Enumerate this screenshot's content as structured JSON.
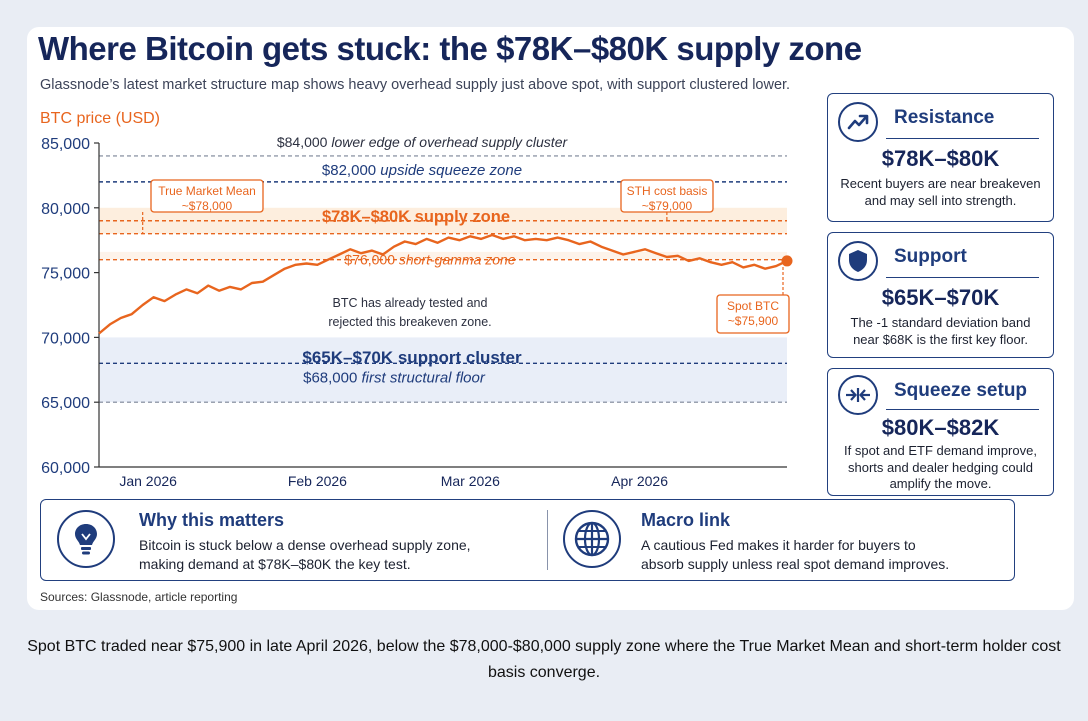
{
  "title": "Where Bitcoin gets stuck: the $78K–$80K supply zone",
  "subtitle": "Glassnode’s latest market structure map shows heavy overhead supply just above spot, with support clustered lower.",
  "colors": {
    "navy": "#1f3c7c",
    "orange": "#e8651e",
    "orange_band": "#fdeede",
    "blue_band": "#e9eef8",
    "dark_text": "#16265a"
  },
  "chart_data": {
    "type": "line",
    "ylabel": "BTC price (USD)",
    "ylim": [
      60000,
      85000
    ],
    "yticks": [
      85000,
      80000,
      75000,
      70000,
      65000,
      60000
    ],
    "ytick_labels": [
      "85,000",
      "80,000",
      "75,000",
      "70,000",
      "65,000",
      "60,000"
    ],
    "xlim": [
      "2025-12-23",
      "2026-04-28"
    ],
    "xticks": [
      {
        "date": "2026-01-01",
        "label": "Jan 2026"
      },
      {
        "date": "2026-02-01",
        "label": "Feb 2026"
      },
      {
        "date": "2026-03-01",
        "label": "Mar 2026"
      },
      {
        "date": "2026-04-01",
        "label": "Apr 2026"
      }
    ],
    "series": [
      {
        "values": [
          [
            "2025-12-23",
            70300
          ],
          [
            "2025-12-25",
            71000
          ],
          [
            "2025-12-27",
            71500
          ],
          [
            "2025-12-29",
            71800
          ],
          [
            "2025-12-31",
            72500
          ],
          [
            "2026-01-02",
            73100
          ],
          [
            "2026-01-04",
            72800
          ],
          [
            "2026-01-06",
            73300
          ],
          [
            "2026-01-08",
            73700
          ],
          [
            "2026-01-10",
            73400
          ],
          [
            "2026-01-12",
            74000
          ],
          [
            "2026-01-14",
            73600
          ],
          [
            "2026-01-16",
            73900
          ],
          [
            "2026-01-18",
            73700
          ],
          [
            "2026-01-20",
            74200
          ],
          [
            "2026-01-22",
            74300
          ],
          [
            "2026-01-24",
            74800
          ],
          [
            "2026-01-26",
            75300
          ],
          [
            "2026-01-28",
            75600
          ],
          [
            "2026-01-30",
            75700
          ],
          [
            "2026-02-01",
            75600
          ],
          [
            "2026-02-03",
            76000
          ],
          [
            "2026-02-05",
            76400
          ],
          [
            "2026-02-07",
            76800
          ],
          [
            "2026-02-09",
            76500
          ],
          [
            "2026-02-11",
            76700
          ],
          [
            "2026-02-13",
            76400
          ],
          [
            "2026-02-15",
            77000
          ],
          [
            "2026-02-17",
            77400
          ],
          [
            "2026-02-19",
            77200
          ],
          [
            "2026-02-21",
            77600
          ],
          [
            "2026-02-23",
            77300
          ],
          [
            "2026-02-25",
            77700
          ],
          [
            "2026-02-27",
            77500
          ],
          [
            "2026-03-01",
            77800
          ],
          [
            "2026-03-03",
            77600
          ],
          [
            "2026-03-05",
            77900
          ],
          [
            "2026-03-07",
            77600
          ],
          [
            "2026-03-09",
            77800
          ],
          [
            "2026-03-11",
            77500
          ],
          [
            "2026-03-13",
            77600
          ],
          [
            "2026-03-15",
            77500
          ],
          [
            "2026-03-17",
            77700
          ],
          [
            "2026-03-19",
            77500
          ],
          [
            "2026-03-21",
            77200
          ],
          [
            "2026-03-23",
            77400
          ],
          [
            "2026-03-25",
            77000
          ],
          [
            "2026-03-27",
            76700
          ],
          [
            "2026-03-29",
            76400
          ],
          [
            "2026-03-31",
            76600
          ],
          [
            "2026-04-02",
            76800
          ],
          [
            "2026-04-04",
            76500
          ],
          [
            "2026-04-06",
            76200
          ],
          [
            "2026-04-08",
            76300
          ],
          [
            "2026-04-10",
            75900
          ],
          [
            "2026-04-12",
            76100
          ],
          [
            "2026-04-14",
            75800
          ],
          [
            "2026-04-16",
            75600
          ],
          [
            "2026-04-18",
            75800
          ],
          [
            "2026-04-20",
            75400
          ],
          [
            "2026-04-22",
            75600
          ],
          [
            "2026-04-24",
            75300
          ],
          [
            "2026-04-26",
            75500
          ],
          [
            "2026-04-28",
            75900
          ]
        ]
      }
    ],
    "zones": [
      {
        "from": 78000,
        "to": 80000,
        "label": "$78K–$80K supply zone",
        "color": "orange"
      },
      {
        "from": 65000,
        "to": 70000,
        "label": "$65K–$70K support cluster",
        "color": "blue"
      }
    ],
    "reference_lines": [
      {
        "y": 84000,
        "value_label": "$84,000",
        "label": "lower edge of overhead supply cluster",
        "color": "gray"
      },
      {
        "y": 82000,
        "value_label": "$82,000",
        "label": "upside squeeze zone",
        "color": "navy"
      },
      {
        "y": 78000,
        "label": "",
        "color": "orange"
      },
      {
        "y": 79000,
        "label": "",
        "color": "orange"
      },
      {
        "y": 76000,
        "value_label": "$76,000",
        "label": "short-gamma zone",
        "color": "orange"
      },
      {
        "y": 68000,
        "value_label": "$68,000",
        "label": "first structural floor",
        "color": "navy"
      },
      {
        "y": 65000,
        "label": "",
        "color": "gray"
      }
    ],
    "annotations": [
      {
        "text": "True Market Mean\n~$78,000",
        "x": "2025-12-31",
        "y": 78000
      },
      {
        "text": "STH cost basis\n~$79,000",
        "x": "2026-04-06",
        "y": 79000
      },
      {
        "text": "Spot BTC\n~$75,900",
        "x": "2026-04-28",
        "y": 75900
      },
      {
        "text": "BTC has already tested and\nrejected this breakeven zone."
      }
    ]
  },
  "side_boxes": [
    {
      "icon": "trend-up-icon",
      "heading": "Resistance",
      "range": "$78K–$80K",
      "text": "Recent buyers are near breakeven and may sell into strength."
    },
    {
      "icon": "shield-icon",
      "heading": "Support",
      "range": "$65K–$70K",
      "text": "The -1 standard deviation band near $68K is the first key floor."
    },
    {
      "icon": "squeeze-arrows-icon",
      "heading": "Squeeze setup",
      "range": "$80K–$82K",
      "text": "If spot and ETF demand improve, shorts and dealer hedging could amplify the move."
    }
  ],
  "bottom": {
    "why": {
      "icon": "lightbulb-icon",
      "heading": "Why this matters",
      "text": "Bitcoin is stuck below a dense overhead supply zone, making demand at $78K–$80K the key test."
    },
    "macro": {
      "icon": "globe-icon",
      "heading": "Macro link",
      "text": "A cautious Fed makes it harder for buyers to absorb supply unless real spot demand improves."
    }
  },
  "sources": "Sources: Glassnode, article reporting",
  "caption": "Spot BTC traded near $75,900 in late April 2026, below the $78,000-$80,000 supply zone where the True Market Mean and short-term holder cost basis converge."
}
